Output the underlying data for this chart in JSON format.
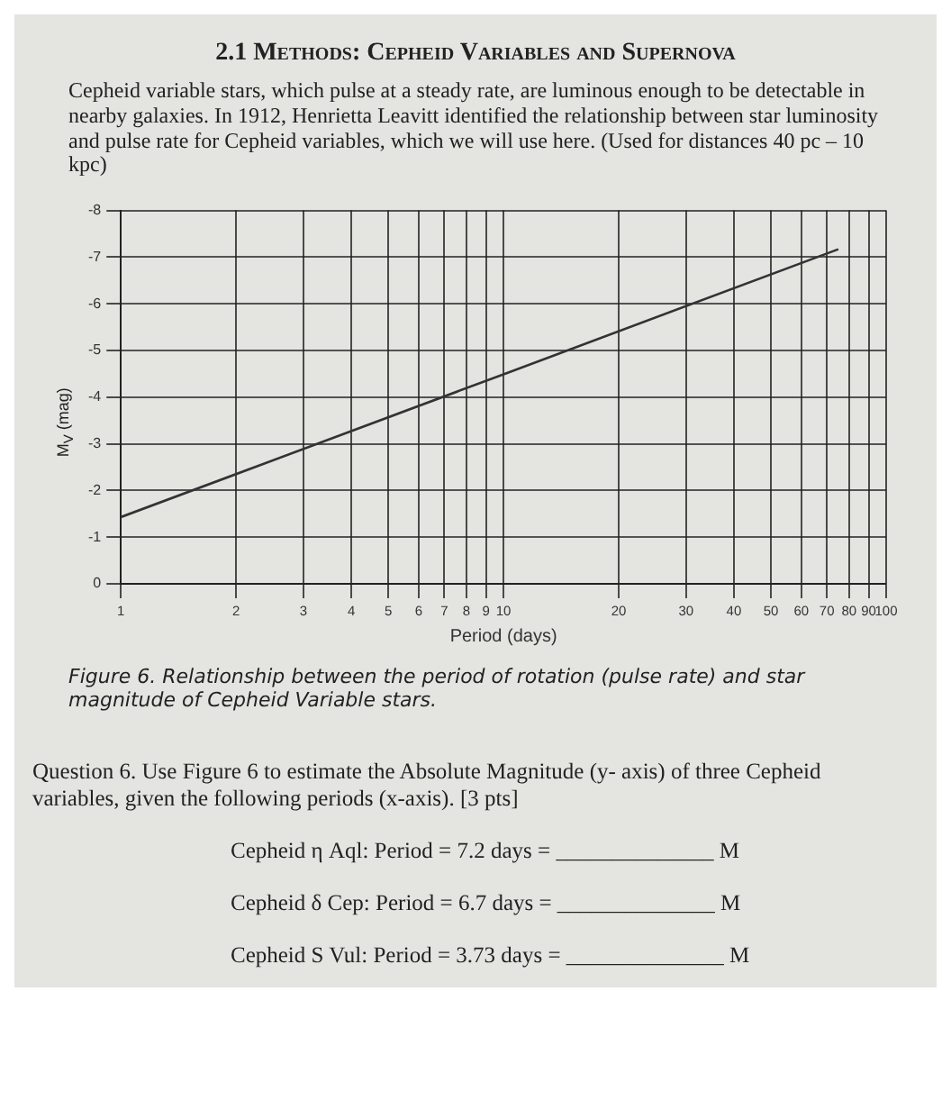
{
  "chart_data": {
    "type": "line",
    "title": "2.1 Methods: Cepheid Variables and Supernova",
    "subtitle": "Cepheid variable stars, which pulse at a steady rate, are luminous enough to be detectable in nearby galaxies. In 1912, Henrietta Leavitt identified the relationship between star luminosity and pulse rate for Cepheid variables, which we will use here. (Used for distances 40 pc – 10 kpc)",
    "xlabel": "Period (days)",
    "ylabel": "M$_{V}$ (mag)",
    "series": [
      {
        "color": "#333333",
        "x": [
          1,
          10,
          75
        ],
        "values": [
          -1.43,
          -4.49,
          -7.17
        ]
      }
    ],
    "log": "x",
    "xlim": [
      1,
      100
    ],
    "xticks": [
      1,
      2,
      3,
      4,
      5,
      6,
      7,
      8,
      9,
      10,
      20,
      30,
      40,
      50,
      60,
      70,
      80,
      90,
      100
    ],
    "ylim": [
      0,
      -8
    ],
    "yticks": [
      0,
      -1,
      -2,
      -3,
      -4,
      -5,
      -6,
      -7,
      -8
    ],
    "grid": true,
    "marker": "none",
    "line_style": "solid",
    "legend": false,
    "annotations": [
      "Figure 6. Relationship between the period of rotation (pulse rate) and star magnitude of Cepheid Variable stars.",
      "Question 6. Use Figure 6 to estimate the Absolute Magnitude (y- axis) of three Cepheid variables, given the following periods (x-axis). [3 pts]",
      "Cepheid η Aql: Period = 7.2 days = ______________ M",
      "Cepheid δ Cep: Period = 6.7 days = ______________ M",
      "Cepheid S Vul: Period = 3.73 days = ______________ M"
    ]
  }
}
